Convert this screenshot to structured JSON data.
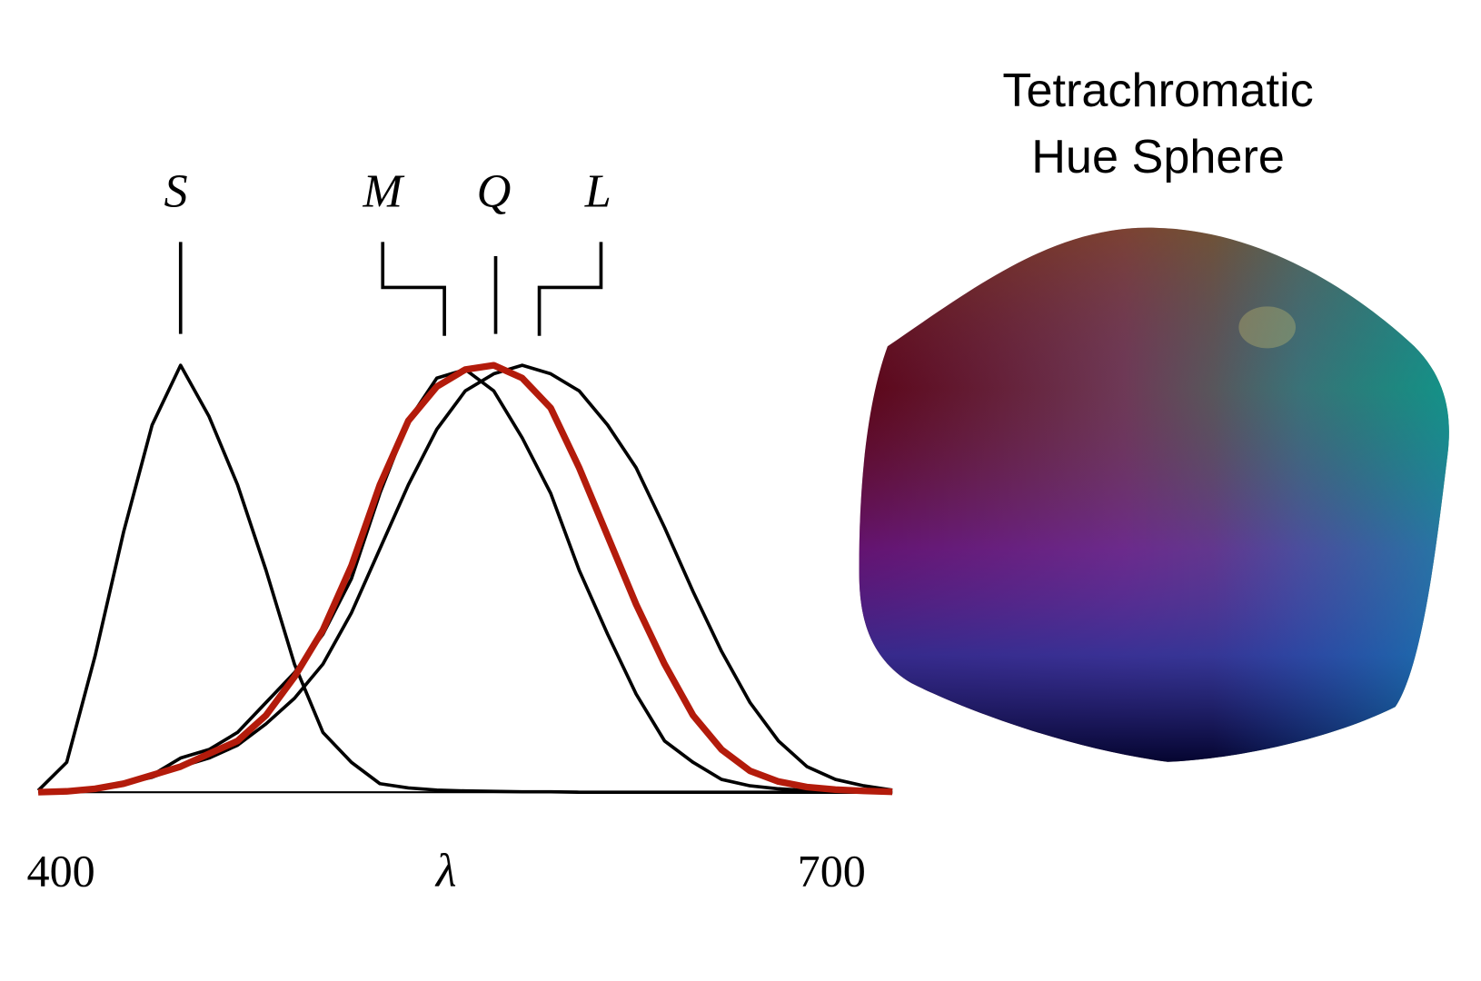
{
  "chart_data": {
    "type": "line",
    "x_label": "λ",
    "x": [
      400,
      410,
      420,
      430,
      440,
      450,
      460,
      470,
      480,
      490,
      500,
      510,
      520,
      530,
      540,
      550,
      560,
      570,
      580,
      590,
      600,
      610,
      620,
      630,
      640,
      650,
      660,
      670,
      680,
      690,
      700
    ],
    "xlim": [
      400,
      700
    ],
    "xticks": [
      400,
      700
    ],
    "ylim": [
      0,
      1
    ],
    "series": [
      {
        "name": "S",
        "color": "#000000",
        "values": [
          0.004,
          0.07,
          0.32,
          0.61,
          0.86,
          1.0,
          0.88,
          0.72,
          0.52,
          0.3,
          0.14,
          0.07,
          0.02,
          0.01,
          0.005,
          0.003,
          0.002,
          0.001,
          0.001,
          0,
          0,
          0,
          0,
          0,
          0,
          0,
          0,
          0,
          0,
          0,
          0
        ]
      },
      {
        "name": "M",
        "color": "#000000",
        "values": [
          0.002,
          0.005,
          0.01,
          0.02,
          0.04,
          0.08,
          0.1,
          0.14,
          0.21,
          0.28,
          0.37,
          0.5,
          0.7,
          0.87,
          0.97,
          0.99,
          0.94,
          0.83,
          0.7,
          0.52,
          0.37,
          0.23,
          0.12,
          0.07,
          0.03,
          0.015,
          0.008,
          0.004,
          0.002,
          0.001,
          0
        ]
      },
      {
        "name": "Q",
        "color": "#b31b0b",
        "values": [
          0,
          0.002,
          0.008,
          0.02,
          0.04,
          0.06,
          0.09,
          0.12,
          0.18,
          0.27,
          0.38,
          0.53,
          0.72,
          0.87,
          0.95,
          0.99,
          1.0,
          0.97,
          0.9,
          0.76,
          0.6,
          0.44,
          0.3,
          0.18,
          0.1,
          0.05,
          0.025,
          0.012,
          0.006,
          0.003,
          0.001
        ]
      },
      {
        "name": "L",
        "color": "#000000",
        "values": [
          0.002,
          0.005,
          0.01,
          0.02,
          0.035,
          0.06,
          0.08,
          0.11,
          0.16,
          0.22,
          0.3,
          0.42,
          0.57,
          0.72,
          0.85,
          0.94,
          0.98,
          1.0,
          0.98,
          0.94,
          0.86,
          0.76,
          0.62,
          0.47,
          0.33,
          0.21,
          0.12,
          0.06,
          0.03,
          0.015,
          0.005
        ]
      }
    ]
  },
  "sphere_panel": {
    "title_lines": [
      "Tetrachromatic",
      "Hue Sphere"
    ]
  }
}
